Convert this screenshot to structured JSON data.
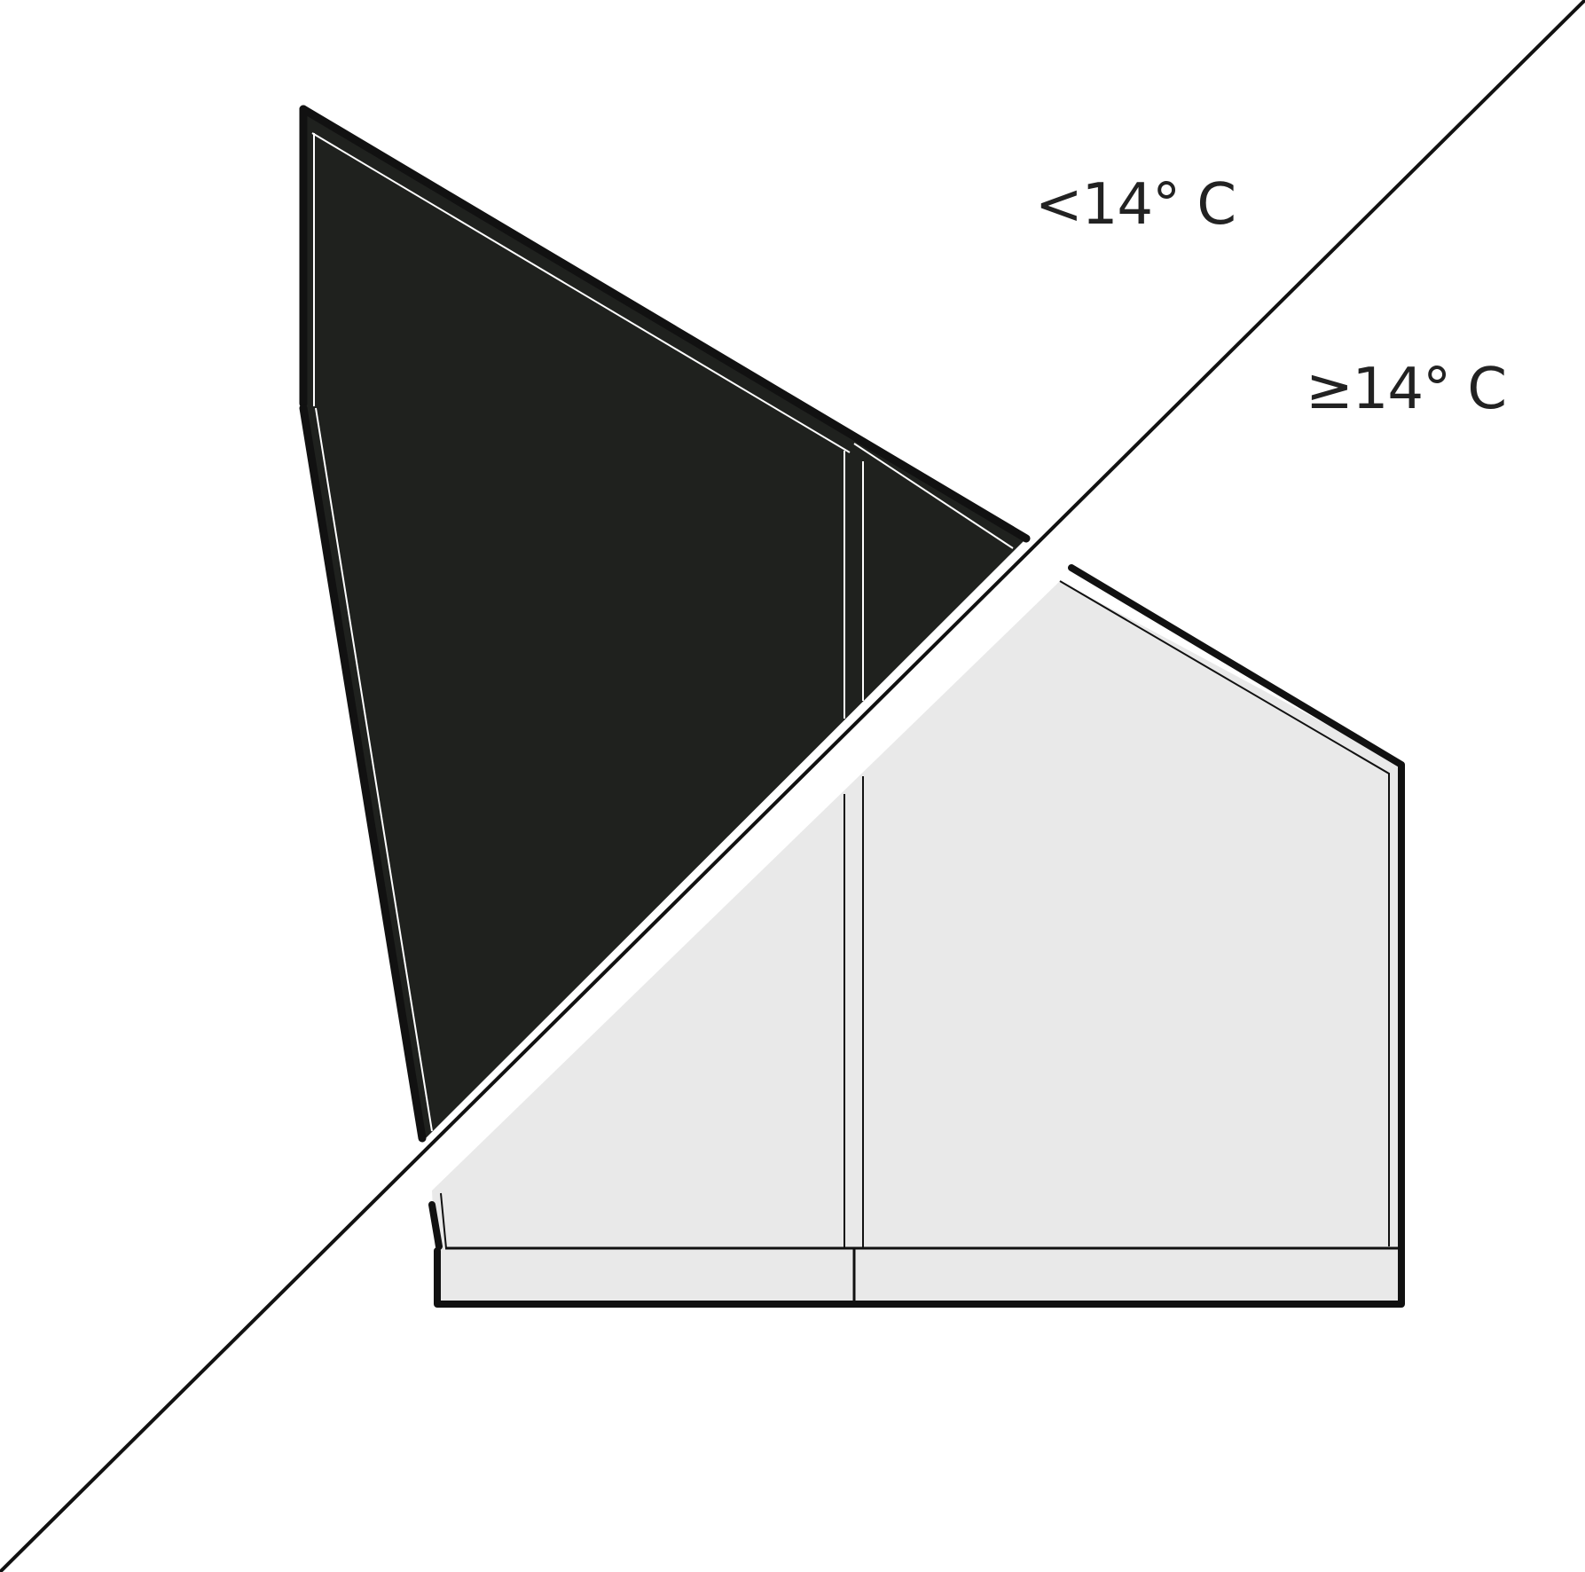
{
  "labels": {
    "cold": "<14° C",
    "warm": "≥14° C"
  },
  "colors": {
    "cold_region": "#1f211e",
    "warm_region": "#e9e9e9",
    "outline": "#111111",
    "inner_line": "#ffffff",
    "divider": "#111111",
    "background": "#ffffff"
  }
}
